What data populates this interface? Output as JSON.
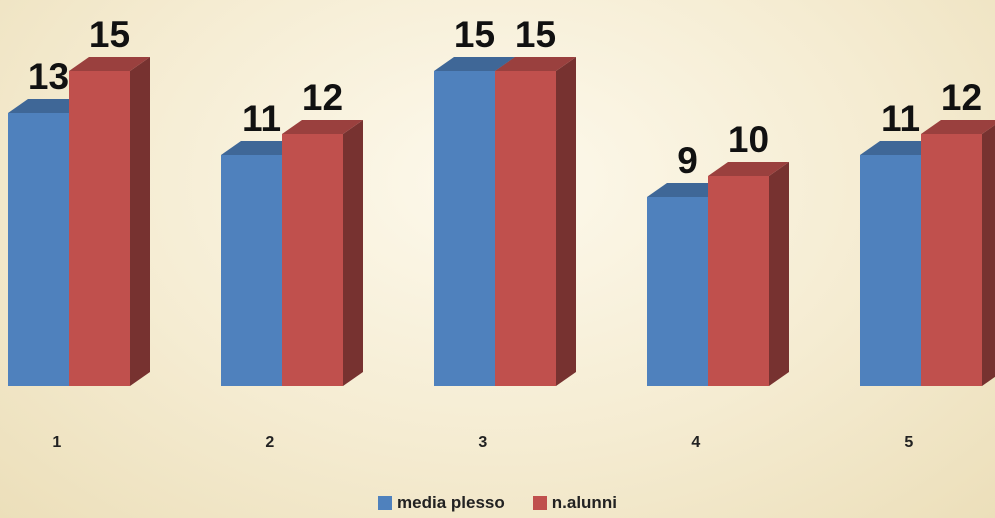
{
  "chart_data": {
    "type": "bar",
    "categories": [
      "1",
      "2",
      "3",
      "4",
      "5"
    ],
    "series": [
      {
        "name": "media plesso",
        "values": [
          13,
          11,
          15,
          9,
          11
        ],
        "color": "#4f81bd"
      },
      {
        "name": "n.alunni",
        "values": [
          15,
          12,
          15,
          10,
          12
        ],
        "color": "#c0504d"
      }
    ],
    "title": "",
    "xlabel": "",
    "ylabel": "",
    "ylim": [
      0,
      15
    ],
    "grid": false,
    "legend": "bottom",
    "style": "3d-columns"
  }
}
